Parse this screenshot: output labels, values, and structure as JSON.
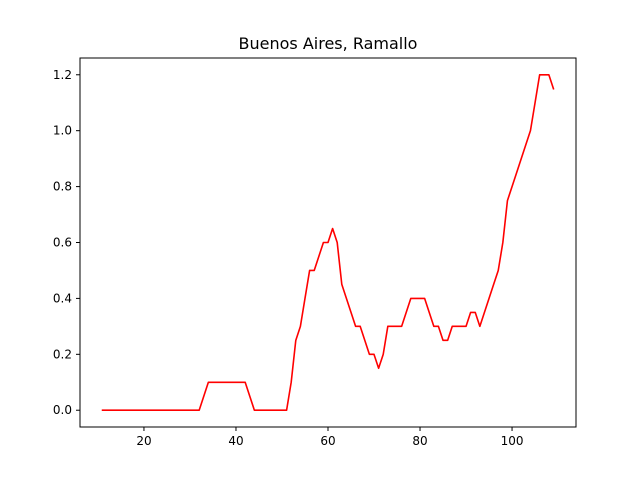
{
  "chart_data": {
    "type": "line",
    "title": "Buenos Aires, Ramallo",
    "xlabel": "",
    "ylabel": "",
    "xlim": [
      6.1,
      113.9
    ],
    "ylim": [
      -0.06,
      1.26
    ],
    "xticks": [
      20,
      40,
      60,
      80,
      100
    ],
    "yticks": [
      0.0,
      0.2,
      0.4,
      0.6,
      0.8,
      1.0,
      1.2
    ],
    "xtick_labels": [
      "20",
      "40",
      "60",
      "80",
      "100"
    ],
    "ytick_labels": [
      "0.0",
      "0.2",
      "0.4",
      "0.6",
      "0.8",
      "1.0",
      "1.2"
    ],
    "grid": false,
    "legend": "none",
    "series": [
      {
        "color": "#ff0000",
        "x": [
          11,
          12,
          13,
          14,
          15,
          16,
          17,
          18,
          19,
          20,
          21,
          22,
          23,
          24,
          25,
          26,
          27,
          28,
          29,
          30,
          31,
          32,
          33,
          34,
          35,
          36,
          37,
          38,
          39,
          40,
          41,
          42,
          43,
          44,
          45,
          46,
          47,
          48,
          49,
          50,
          51,
          52,
          53,
          54,
          55,
          56,
          57,
          58,
          59,
          60,
          61,
          62,
          63,
          64,
          65,
          66,
          67,
          68,
          69,
          70,
          71,
          72,
          73,
          74,
          75,
          76,
          77,
          78,
          79,
          80,
          81,
          82,
          83,
          84,
          85,
          86,
          87,
          88,
          89,
          90,
          91,
          92,
          93,
          94,
          95,
          96,
          97,
          98,
          99,
          100,
          101,
          102,
          103,
          104,
          105,
          106,
          107,
          108,
          109
        ],
        "y": [
          0,
          0,
          0,
          0,
          0,
          0,
          0,
          0,
          0,
          0,
          0,
          0,
          0,
          0,
          0,
          0,
          0,
          0,
          0,
          0,
          0,
          0,
          0.05,
          0.1,
          0.1,
          0.1,
          0.1,
          0.1,
          0.1,
          0.1,
          0.1,
          0.1,
          0.05,
          0,
          0,
          0,
          0,
          0,
          0,
          0,
          0,
          0.1,
          0.25,
          0.3,
          0.4,
          0.5,
          0.5,
          0.55,
          0.6,
          0.6,
          0.65,
          0.6,
          0.45,
          0.4,
          0.35,
          0.3,
          0.3,
          0.25,
          0.2,
          0.2,
          0.15,
          0.2,
          0.3,
          0.3,
          0.3,
          0.3,
          0.35,
          0.4,
          0.4,
          0.4,
          0.4,
          0.35,
          0.3,
          0.3,
          0.25,
          0.25,
          0.3,
          0.3,
          0.3,
          0.3,
          0.35,
          0.35,
          0.3,
          0.35,
          0.4,
          0.45,
          0.5,
          0.6,
          0.75,
          0.8,
          0.85,
          0.9,
          0.95,
          1.0,
          1.1,
          1.2,
          1.2,
          1.2,
          1.15
        ]
      }
    ]
  }
}
